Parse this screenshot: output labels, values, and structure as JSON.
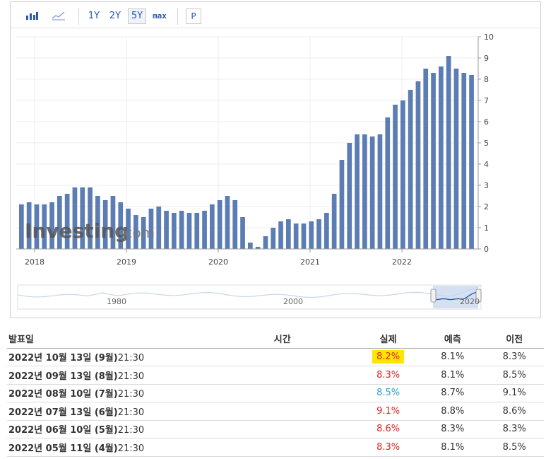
{
  "toolbar": {
    "range_1y": "1Y",
    "range_2y": "2Y",
    "range_5y": "5Y",
    "range_max": "max",
    "p_label": "P"
  },
  "chart_data": {
    "type": "bar",
    "x_tick_labels": [
      "2018",
      "2019",
      "2020",
      "2021",
      "2022"
    ],
    "y_tick_labels": [
      "0",
      "1",
      "2",
      "3",
      "4",
      "5",
      "6",
      "7",
      "8",
      "9",
      "10"
    ],
    "ylim": [
      0,
      10
    ],
    "values": [
      2.1,
      2.2,
      2.1,
      2.1,
      2.2,
      2.5,
      2.6,
      2.9,
      2.9,
      2.9,
      2.5,
      2.3,
      2.5,
      2.2,
      1.9,
      1.6,
      1.5,
      1.9,
      2.0,
      1.8,
      1.7,
      1.8,
      1.7,
      1.7,
      1.8,
      2.1,
      2.3,
      2.5,
      2.3,
      1.5,
      0.3,
      0.1,
      0.6,
      1.0,
      1.3,
      1.4,
      1.2,
      1.2,
      1.3,
      1.4,
      1.7,
      2.6,
      4.2,
      5.0,
      5.4,
      5.4,
      5.3,
      5.4,
      6.2,
      6.8,
      7.0,
      7.5,
      7.9,
      8.5,
      8.3,
      8.6,
      9.1,
      8.5,
      8.3,
      8.2
    ],
    "bar_color": "#5b7db4",
    "navigator": {
      "labels": [
        "1980",
        "2000",
        "2020"
      ]
    },
    "watermark": "Investing.com"
  },
  "table": {
    "headers": {
      "release_date": "발표일",
      "time": "시간",
      "actual": "실제",
      "forecast": "예측",
      "previous": "이전"
    },
    "rows": [
      {
        "date": "2022년 10월 13일 (9월)",
        "time": "21:30",
        "actual": "8.2%",
        "forecast": "8.1%",
        "previous": "8.3%",
        "actual_color": "red",
        "highlight": true
      },
      {
        "date": "2022년 09월 13일 (8월)",
        "time": "21:30",
        "actual": "8.3%",
        "forecast": "8.1%",
        "previous": "8.5%",
        "actual_color": "red",
        "highlight": false
      },
      {
        "date": "2022년 08월 10일 (7월)",
        "time": "21:30",
        "actual": "8.5%",
        "forecast": "8.7%",
        "previous": "9.1%",
        "actual_color": "blue",
        "highlight": false
      },
      {
        "date": "2022년 07월 13일 (6월)",
        "time": "21:30",
        "actual": "9.1%",
        "forecast": "8.8%",
        "previous": "8.6%",
        "actual_color": "red",
        "highlight": false
      },
      {
        "date": "2022년 06월 10일 (5월)",
        "time": "21:30",
        "actual": "8.6%",
        "forecast": "8.3%",
        "previous": "8.3%",
        "actual_color": "red",
        "highlight": false
      },
      {
        "date": "2022년 05월 11일 (4월)",
        "time": "21:30",
        "actual": "8.3%",
        "forecast": "8.1%",
        "previous": "8.5%",
        "actual_color": "red",
        "highlight": false
      }
    ]
  }
}
